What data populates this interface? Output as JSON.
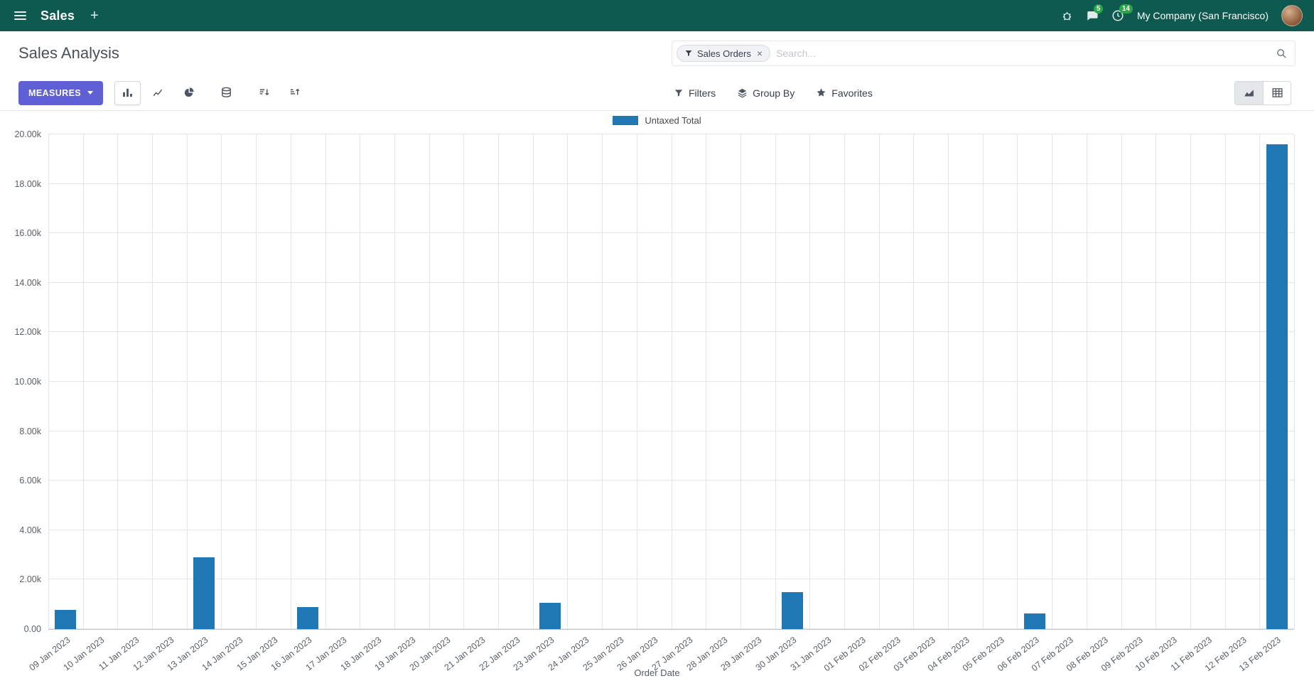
{
  "navbar": {
    "app_name": "Sales",
    "new_label": "+",
    "chat_badge": "5",
    "activity_badge": "14",
    "company": "My Company (San Francisco)"
  },
  "control_panel": {
    "title": "Sales Analysis",
    "search": {
      "facet": "Sales Orders",
      "facet_remove": "×",
      "placeholder": "Search..."
    }
  },
  "toolbar": {
    "measures_label": "MEASURES",
    "filters_label": "Filters",
    "group_by_label": "Group By",
    "favorites_label": "Favorites"
  },
  "colors": {
    "navbar_bg": "#0e5a50",
    "badge_green": "#28a745",
    "primary_button": "#5f5fd6",
    "bar": "#1f77b4"
  },
  "chart_data": {
    "type": "bar",
    "legend_position": "top",
    "grid": true,
    "xlabel": "Order Date",
    "ylim": [
      0,
      20000
    ],
    "ytick_step": 2000,
    "ytick_labels": [
      "0.00",
      "2.00k",
      "4.00k",
      "6.00k",
      "8.00k",
      "10.00k",
      "12.00k",
      "14.00k",
      "16.00k",
      "18.00k",
      "20.00k"
    ],
    "categories": [
      "09 Jan 2023",
      "10 Jan 2023",
      "11 Jan 2023",
      "12 Jan 2023",
      "13 Jan 2023",
      "14 Jan 2023",
      "15 Jan 2023",
      "16 Jan 2023",
      "17 Jan 2023",
      "18 Jan 2023",
      "19 Jan 2023",
      "20 Jan 2023",
      "21 Jan 2023",
      "22 Jan 2023",
      "23 Jan 2023",
      "24 Jan 2023",
      "25 Jan 2023",
      "26 Jan 2023",
      "27 Jan 2023",
      "28 Jan 2023",
      "29 Jan 2023",
      "30 Jan 2023",
      "31 Jan 2023",
      "01 Feb 2023",
      "02 Feb 2023",
      "03 Feb 2023",
      "04 Feb 2023",
      "05 Feb 2023",
      "06 Feb 2023",
      "07 Feb 2023",
      "08 Feb 2023",
      "09 Feb 2023",
      "10 Feb 2023",
      "11 Feb 2023",
      "12 Feb 2023",
      "13 Feb 2023"
    ],
    "series": [
      {
        "name": "Untaxed Total",
        "values": [
          780,
          0,
          0,
          0,
          2900,
          0,
          0,
          900,
          0,
          0,
          0,
          0,
          0,
          0,
          1050,
          0,
          0,
          0,
          0,
          0,
          0,
          1500,
          0,
          0,
          0,
          0,
          0,
          0,
          630,
          0,
          0,
          0,
          0,
          0,
          0,
          19600
        ]
      }
    ]
  }
}
